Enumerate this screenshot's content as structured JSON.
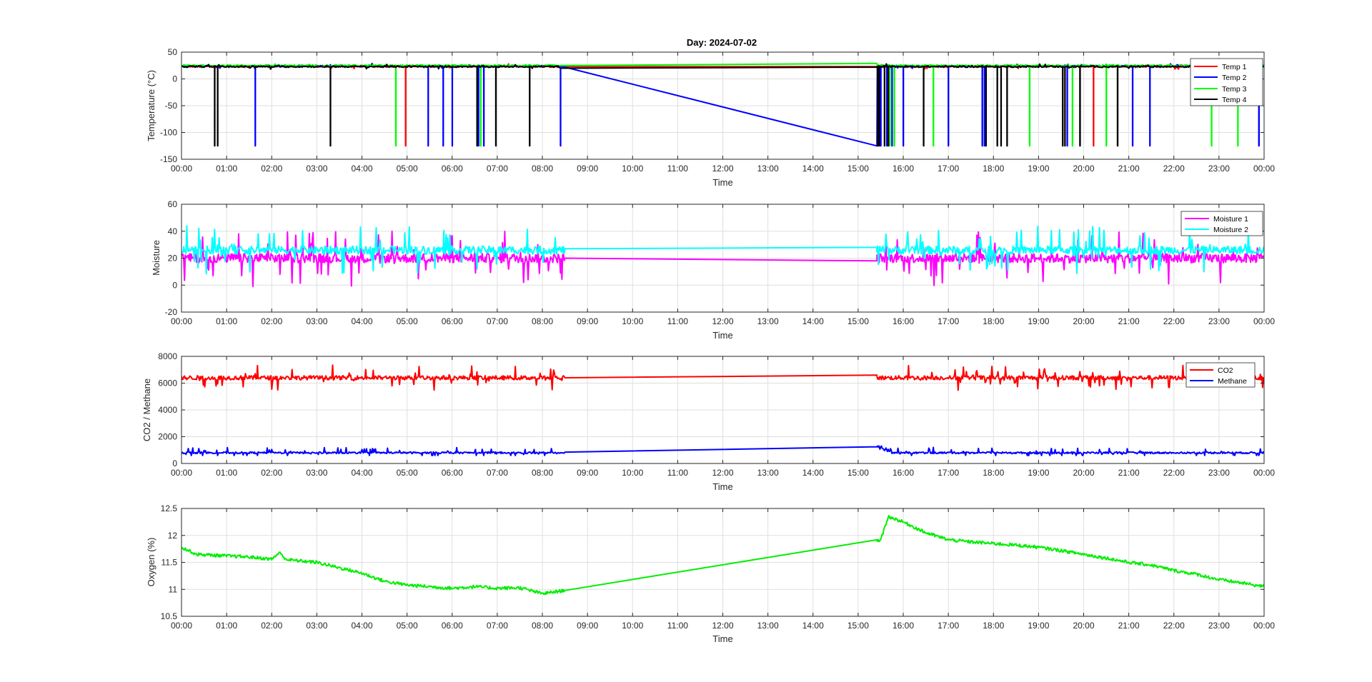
{
  "figure": {
    "title": "Day: 2024-07-02"
  },
  "chart_data": [
    {
      "type": "line",
      "xlabel": "Time",
      "ylabel": "Temperature (°C)",
      "xlim": [
        "00:00",
        "24:00"
      ],
      "ylim": [
        -150,
        50
      ],
      "yticks": [
        50,
        0,
        -50,
        -100,
        -150
      ],
      "xticklabels": [
        "00:00",
        "01:00",
        "02:00",
        "03:00",
        "04:00",
        "05:00",
        "06:00",
        "07:00",
        "08:00",
        "09:00",
        "10:00",
        "11:00",
        "12:00",
        "13:00",
        "14:00",
        "15:00",
        "16:00",
        "17:00",
        "18:00",
        "19:00",
        "20:00",
        "21:00",
        "22:00",
        "23:00",
        "00:00"
      ],
      "grid": true,
      "legend_position": "top-right",
      "series": [
        {
          "name": "Temp 1",
          "color": "#ff0000",
          "baseline": 23,
          "gap": [
            "08:25",
            "15:25"
          ],
          "gap_end_values": [
            23,
            23
          ],
          "dropout_value": -125,
          "dropouts": [
            "04:58",
            "20:13"
          ]
        },
        {
          "name": "Temp 2",
          "color": "#0000ff",
          "baseline": 24,
          "gap": [
            "08:25",
            "15:25"
          ],
          "gap_end_values": [
            24,
            -125
          ],
          "dropout_value": -125,
          "dropouts": [
            "01:38",
            "05:28",
            "05:48",
            "06:00",
            "06:35",
            "06:42",
            "08:24",
            "08:26",
            "15:30",
            "15:38",
            "15:45",
            "16:00",
            "17:00",
            "17:45",
            "17:48",
            "19:38",
            "21:05",
            "21:28",
            "23:53"
          ]
        },
        {
          "name": "Temp 3",
          "color": "#00ff00",
          "baseline": 25,
          "gap": [
            "08:25",
            "15:25"
          ],
          "gap_end_values": [
            25,
            29
          ],
          "dropout_value": -125,
          "dropouts": [
            "04:45",
            "06:38",
            "15:42",
            "15:48",
            "16:40",
            "18:48",
            "19:45",
            "20:30",
            "22:50",
            "23:25"
          ]
        },
        {
          "name": "Temp 4",
          "color": "#000000",
          "baseline": 23,
          "gap": [
            "08:25",
            "15:25"
          ],
          "gap_end_values": [
            20,
            22
          ],
          "dropout_value": -125,
          "dropouts": [
            "00:44",
            "00:48",
            "03:18",
            "06:33",
            "06:58",
            "07:43",
            "15:26",
            "15:28",
            "15:35",
            "15:40",
            "16:27",
            "17:50",
            "18:05",
            "18:10",
            "18:18",
            "19:32",
            "19:35",
            "19:55",
            "20:45"
          ]
        }
      ]
    },
    {
      "type": "line",
      "xlabel": "Time",
      "ylabel": "Moisture",
      "xlim": [
        "00:00",
        "24:00"
      ],
      "ylim": [
        -20,
        60
      ],
      "yticks": [
        60,
        40,
        20,
        0,
        -20
      ],
      "xticklabels": [
        "00:00",
        "01:00",
        "02:00",
        "03:00",
        "04:00",
        "05:00",
        "06:00",
        "07:00",
        "08:00",
        "09:00",
        "10:00",
        "11:00",
        "12:00",
        "13:00",
        "14:00",
        "15:00",
        "16:00",
        "17:00",
        "18:00",
        "19:00",
        "20:00",
        "21:00",
        "22:00",
        "23:00",
        "00:00"
      ],
      "grid": true,
      "legend_position": "top-right",
      "series": [
        {
          "name": "Moisture 1",
          "color": "#ff00ff",
          "mean": 20,
          "noise_range": [
            -5,
            48
          ],
          "gap": [
            "08:30",
            "15:25"
          ],
          "gap_end_values": [
            20,
            18
          ]
        },
        {
          "name": "Moisture 2",
          "color": "#00ffff",
          "mean": 26,
          "noise_range": [
            0,
            45
          ],
          "gap": [
            "08:30",
            "15:25"
          ],
          "gap_end_values": [
            27,
            28
          ]
        }
      ]
    },
    {
      "type": "line",
      "xlabel": "Time",
      "ylabel": "CO2 / Methane",
      "xlim": [
        "00:00",
        "24:00"
      ],
      "ylim": [
        0,
        8000
      ],
      "yticks": [
        8000,
        6000,
        4000,
        2000,
        0
      ],
      "xticklabels": [
        "00:00",
        "01:00",
        "02:00",
        "03:00",
        "04:00",
        "05:00",
        "06:00",
        "07:00",
        "08:00",
        "09:00",
        "10:00",
        "11:00",
        "12:00",
        "13:00",
        "14:00",
        "15:00",
        "16:00",
        "17:00",
        "18:00",
        "19:00",
        "20:00",
        "21:00",
        "22:00",
        "23:00",
        "00:00"
      ],
      "grid": true,
      "legend_position": "top-right",
      "series": [
        {
          "name": "CO2",
          "color": "#ff0000",
          "mean": 6400,
          "noise_range": [
            5300,
            7700
          ],
          "gap": [
            "08:30",
            "15:25"
          ],
          "gap_end_values": [
            6400,
            6600
          ]
        },
        {
          "name": "Methane",
          "color": "#0000ff",
          "mean": 800,
          "noise_range": [
            600,
            1600
          ],
          "gap": [
            "08:30",
            "15:25"
          ],
          "gap_end_values": [
            850,
            1250
          ]
        }
      ]
    },
    {
      "type": "line",
      "xlabel": "Time",
      "ylabel": "Oxygen (%)",
      "xlim": [
        "00:00",
        "24:00"
      ],
      "ylim": [
        10.5,
        12.5
      ],
      "yticks": [
        12.5,
        12,
        11.5,
        11,
        10.5
      ],
      "xticklabels": [
        "00:00",
        "01:00",
        "02:00",
        "03:00",
        "04:00",
        "05:00",
        "06:00",
        "07:00",
        "08:00",
        "09:00",
        "10:00",
        "11:00",
        "12:00",
        "13:00",
        "14:00",
        "15:00",
        "16:00",
        "17:00",
        "18:00",
        "19:00",
        "20:00",
        "21:00",
        "22:00",
        "23:00",
        "00:00"
      ],
      "grid": true,
      "series": [
        {
          "name": "",
          "color": "#00ee00",
          "x": [
            "00:00",
            "00:20",
            "01:00",
            "01:30",
            "02:00",
            "02:10",
            "02:20",
            "03:00",
            "03:30",
            "04:00",
            "04:30",
            "05:00",
            "05:30",
            "06:00",
            "06:30",
            "07:00",
            "07:30",
            "08:00",
            "08:30",
            "15:25",
            "15:30",
            "15:40",
            "16:00",
            "16:30",
            "17:00",
            "17:30",
            "18:00",
            "18:30",
            "19:00",
            "19:30",
            "20:00",
            "20:30",
            "21:00",
            "21:30",
            "22:00",
            "22:30",
            "23:00",
            "23:30",
            "24:00"
          ],
          "y": [
            11.78,
            11.65,
            11.62,
            11.6,
            11.56,
            11.68,
            11.55,
            11.5,
            11.4,
            11.3,
            11.15,
            11.08,
            11.05,
            11.02,
            11.05,
            11.02,
            11.03,
            10.92,
            10.98,
            11.92,
            11.9,
            12.35,
            12.25,
            12.05,
            11.92,
            11.88,
            11.85,
            11.82,
            11.78,
            11.72,
            11.65,
            11.58,
            11.5,
            11.45,
            11.35,
            11.28,
            11.18,
            11.12,
            11.05
          ],
          "noise_amplitude": 0.03
        }
      ]
    }
  ]
}
